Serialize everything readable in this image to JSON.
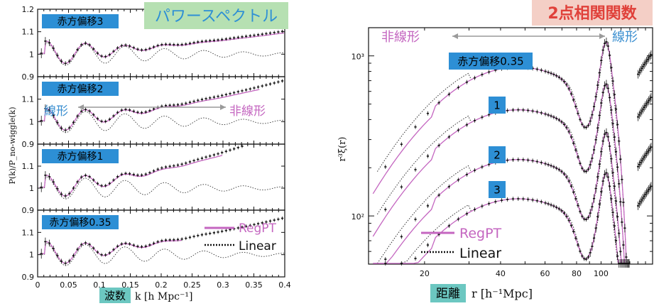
{
  "colors": {
    "regpt": "#c466c0",
    "linear": "#111111",
    "panel_label_bg": "#2d8fd5",
    "panel_label_fg": "#000000",
    "title_left_bg": "#b6e0b2",
    "title_left_fg": "#2d8fd5",
    "title_right_bg": "#f4cfc6",
    "title_right_fg": "#e0413a",
    "xlabel_box_bg": "#6cc7c1",
    "linear_word": "#3b8fd0",
    "nonlinear_word": "#c466c0",
    "arrow": "#9a9a9a"
  },
  "chart_data": [
    {
      "type": "line",
      "title": "パワースペクトル",
      "xlabel_box": "波数",
      "xlabel": "k [h Mpc⁻¹]",
      "ylabel": "P(k)/P_no-wiggle(k)",
      "xlim": [
        0,
        0.4
      ],
      "xticks": [
        0,
        0.05,
        0.1,
        0.15,
        0.2,
        0.25,
        0.3,
        0.35,
        0.4
      ],
      "xtick_labels": [
        "0",
        "0.05",
        "0.1",
        "0.15",
        "0.2",
        "0.25",
        "0.3",
        "0.35",
        "0.4"
      ],
      "ylim": [
        0.9,
        1.2
      ],
      "legend": {
        "position": "bottom-right",
        "entries": [
          "RegPT",
          "Linear"
        ]
      },
      "annotations": {
        "linear": "線形",
        "nonlinear": "非線形"
      },
      "panels": [
        {
          "label": "赤方偏移3",
          "ylim": [
            0.9,
            1.2
          ],
          "yticks": [
            0.9,
            1,
            1.1,
            1.2
          ],
          "ytick_labels": [
            "0.9",
            "1",
            "1.1",
            "1.2"
          ],
          "regpt_kmax": 0.4,
          "growth": 0.11
        },
        {
          "label": "赤方偏移2",
          "ylim": [
            0.9,
            1.2
          ],
          "yticks": [
            0.9,
            1,
            1.1
          ],
          "ytick_labels": [
            "0.9",
            "1",
            "1.1"
          ],
          "regpt_kmax": 0.36,
          "growth": 0.2
        },
        {
          "label": "赤方偏移1",
          "ylim": [
            0.9,
            1.2
          ],
          "yticks": [
            0.9,
            1,
            1.1
          ],
          "ytick_labels": [
            "0.9",
            "1",
            "1.1"
          ],
          "regpt_kmax": 0.3,
          "growth": 0.28
        },
        {
          "label": "赤方偏移0.35",
          "ylim": [
            0.9,
            1.2
          ],
          "yticks": [
            0.9,
            1,
            1.1
          ],
          "ytick_labels": [
            "0.9",
            "1",
            "1.1"
          ],
          "regpt_kmax": 0.235,
          "growth": 0.18
        }
      ]
    },
    {
      "type": "line",
      "title": "2点相関関数",
      "xlabel_box": "距離",
      "xlabel": "r [h⁻¹Mpc]",
      "ylabel": "r³ξ(r)",
      "xscale": "log",
      "yscale": "log",
      "xlim": [
        12,
        160
      ],
      "xticks": [
        20,
        40,
        60,
        80,
        100
      ],
      "xtick_labels": [
        "20",
        "40",
        "60",
        "80",
        "100"
      ],
      "ylim": [
        50,
        1500
      ],
      "yticks": [
        100,
        1000
      ],
      "ytick_labels": [
        "10²",
        "10³"
      ],
      "legend": {
        "position": "bottom-left",
        "entries": [
          "RegPT",
          "Linear"
        ]
      },
      "annotations": {
        "linear": "線形",
        "nonlinear": "非線形"
      },
      "curve_labels": [
        "赤方偏移0.35",
        "1",
        "2",
        "3"
      ],
      "series": [
        {
          "name": "赤方偏移0.35",
          "plateau": 850,
          "trough": 545,
          "peak": 1290
        },
        {
          "name": "1",
          "plateau": 460,
          "trough": 290,
          "peak": 700
        },
        {
          "name": "2",
          "plateau": 225,
          "trough": 145,
          "peak": 345
        },
        {
          "name": "3",
          "plateau": 128,
          "trough": 82,
          "peak": 195
        }
      ]
    }
  ]
}
